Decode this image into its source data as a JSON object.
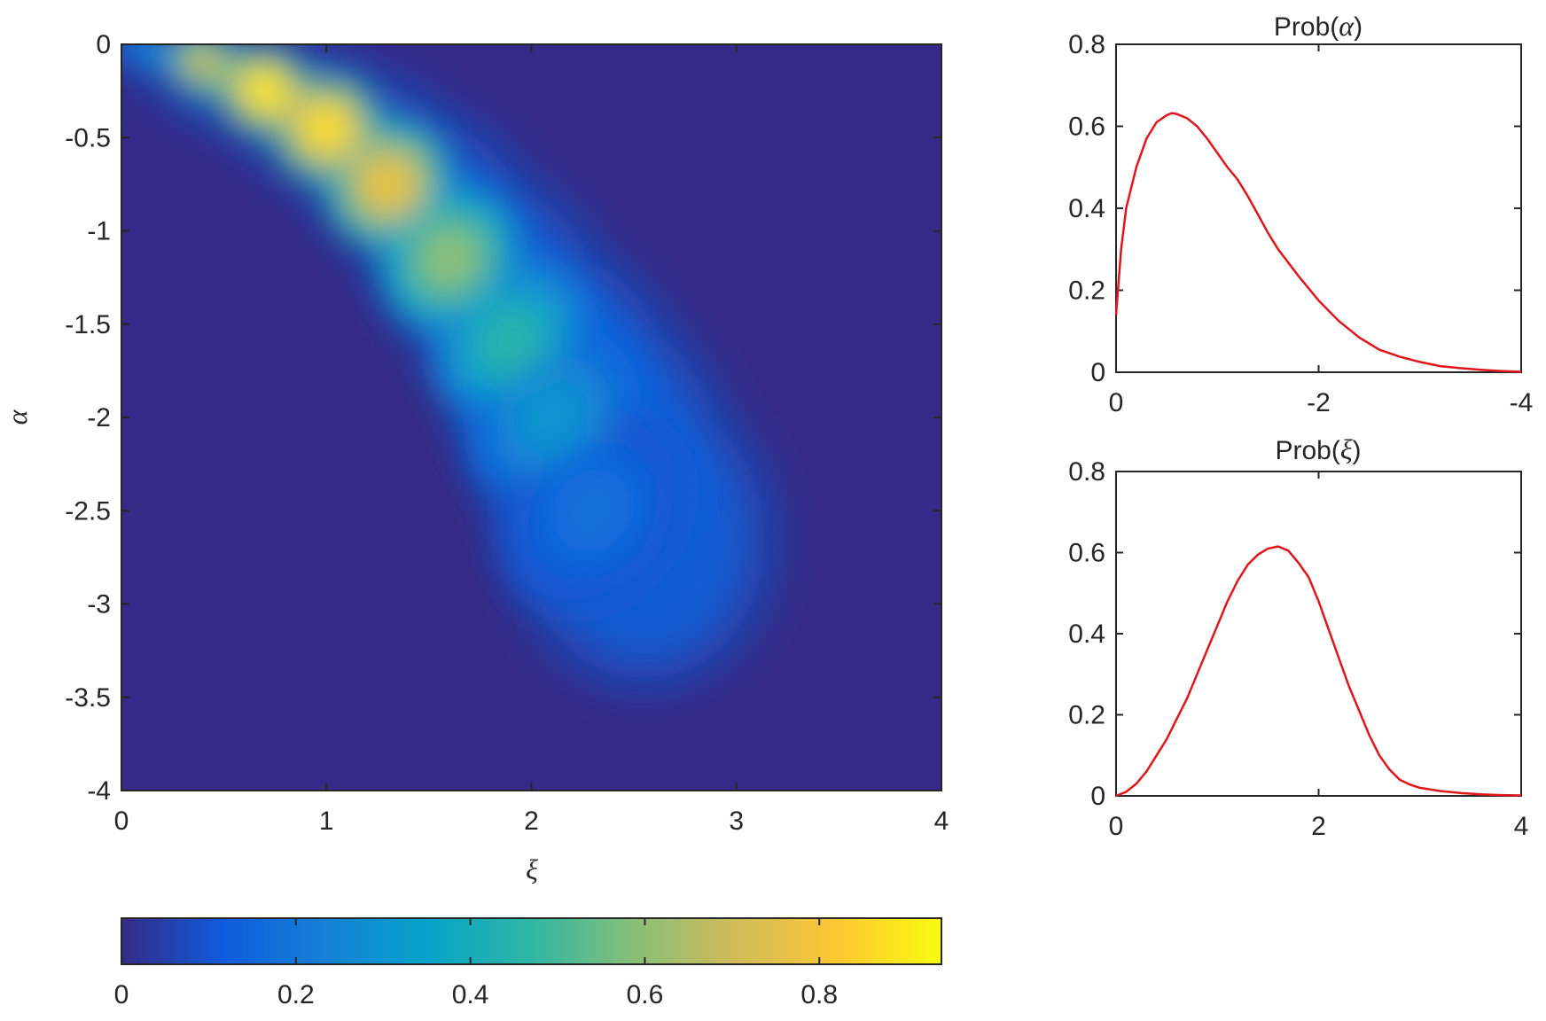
{
  "chart_data": [
    {
      "id": "joint",
      "type": "heatmap",
      "xlabel": "ξ",
      "ylabel": "α",
      "xlim": [
        0,
        4
      ],
      "ylim": [
        -4,
        0
      ],
      "xticks": [
        0,
        1,
        2,
        3,
        4
      ],
      "xtick_labels": [
        "0",
        "1",
        "2",
        "3",
        "4"
      ],
      "yticks": [
        0,
        -0.5,
        -1,
        -1.5,
        -2,
        -2.5,
        -3,
        -3.5,
        -4
      ],
      "ytick_labels": [
        "0",
        "-0.5",
        "-1",
        "-1.5",
        "-2",
        "-2.5",
        "-3",
        "-3.5",
        "-4"
      ],
      "grid": false,
      "colormap": "parula",
      "density_ridge": {
        "xi": [
          0.1,
          0.4,
          0.7,
          1.0,
          1.3,
          1.6,
          1.9,
          2.1,
          2.3
        ],
        "alpha": [
          -0.02,
          -0.1,
          -0.25,
          -0.45,
          -0.75,
          -1.15,
          -1.6,
          -2.0,
          -2.5
        ],
        "density": [
          0.25,
          0.7,
          0.9,
          0.88,
          0.78,
          0.6,
          0.45,
          0.3,
          0.18
        ]
      }
    },
    {
      "id": "colorbar",
      "type": "colorbar",
      "range": [
        0,
        0.94
      ],
      "ticks": [
        0,
        0.2,
        0.4,
        0.6,
        0.8
      ],
      "tick_labels": [
        "0",
        "0.2",
        "0.4",
        "0.6",
        "0.8"
      ],
      "colors": [
        "#352a87",
        "#0f5cdd",
        "#1481d6",
        "#06a4ca",
        "#2eb7a4",
        "#87bf77",
        "#d1bb59",
        "#fec832",
        "#f9fb0e"
      ]
    },
    {
      "id": "prob_alpha",
      "type": "line",
      "title_prefix": "Prob(",
      "title_var": "α",
      "title_suffix": ")",
      "xlim": [
        0,
        -4
      ],
      "ylim": [
        0,
        0.8
      ],
      "xticks": [
        0,
        -2,
        -4
      ],
      "xtick_labels": [
        "0",
        "-2",
        "-4"
      ],
      "yticks": [
        0,
        0.2,
        0.4,
        0.6,
        0.8
      ],
      "ytick_labels": [
        "0",
        "0.2",
        "0.4",
        "0.6",
        "0.8"
      ],
      "grid": false,
      "color": "#e0161b",
      "x": [
        0,
        -0.05,
        -0.1,
        -0.2,
        -0.3,
        -0.4,
        -0.5,
        -0.55,
        -0.6,
        -0.7,
        -0.8,
        -0.9,
        -1.0,
        -1.1,
        -1.2,
        -1.3,
        -1.4,
        -1.5,
        -1.6,
        -1.8,
        -2.0,
        -2.2,
        -2.4,
        -2.6,
        -2.8,
        -3.0,
        -3.2,
        -3.4,
        -3.6,
        -3.8,
        -4.0
      ],
      "y": [
        0.14,
        0.3,
        0.4,
        0.5,
        0.57,
        0.61,
        0.627,
        0.632,
        0.63,
        0.62,
        0.6,
        0.57,
        0.535,
        0.5,
        0.47,
        0.43,
        0.385,
        0.34,
        0.3,
        0.235,
        0.175,
        0.125,
        0.085,
        0.055,
        0.038,
        0.025,
        0.015,
        0.01,
        0.006,
        0.003,
        0.001
      ]
    },
    {
      "id": "prob_xi",
      "type": "line",
      "title_prefix": "Prob(",
      "title_var": "ξ",
      "title_suffix": ")",
      "xlim": [
        0,
        4
      ],
      "ylim": [
        0,
        0.8
      ],
      "xticks": [
        0,
        2,
        4
      ],
      "xtick_labels": [
        "0",
        "2",
        "4"
      ],
      "yticks": [
        0,
        0.2,
        0.4,
        0.6,
        0.8
      ],
      "ytick_labels": [
        "0",
        "0.2",
        "0.4",
        "0.6",
        "0.8"
      ],
      "grid": false,
      "color": "#e0161b",
      "x": [
        0,
        0.1,
        0.2,
        0.3,
        0.4,
        0.5,
        0.6,
        0.7,
        0.8,
        0.9,
        1.0,
        1.1,
        1.2,
        1.3,
        1.4,
        1.5,
        1.6,
        1.7,
        1.8,
        1.9,
        2.0,
        2.1,
        2.2,
        2.3,
        2.4,
        2.5,
        2.6,
        2.7,
        2.8,
        2.9,
        3.0,
        3.2,
        3.4,
        3.6,
        3.8,
        4.0
      ],
      "y": [
        0.0,
        0.01,
        0.03,
        0.06,
        0.1,
        0.14,
        0.19,
        0.24,
        0.3,
        0.36,
        0.42,
        0.48,
        0.53,
        0.57,
        0.595,
        0.61,
        0.615,
        0.605,
        0.575,
        0.54,
        0.48,
        0.41,
        0.34,
        0.27,
        0.21,
        0.15,
        0.1,
        0.065,
        0.04,
        0.028,
        0.02,
        0.012,
        0.007,
        0.004,
        0.002,
        0.001
      ]
    }
  ]
}
